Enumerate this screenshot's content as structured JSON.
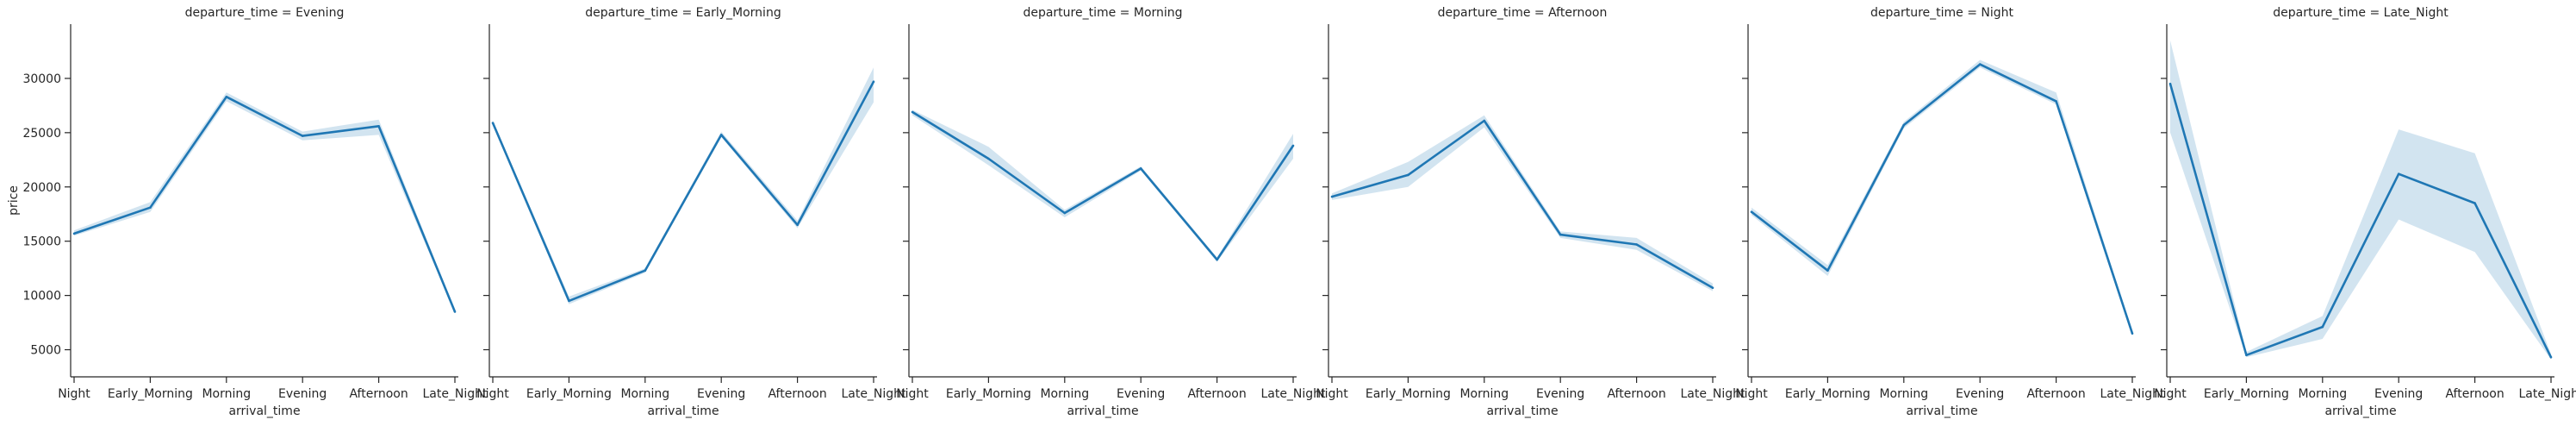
{
  "figure": {
    "ylabel": "price",
    "xlabel": "arrival_time"
  },
  "chart_data": [
    {
      "type": "line",
      "title": "departure_time = Evening",
      "xlabel": "arrival_time",
      "ylabel": "price",
      "categories": [
        "Night",
        "Early_Morning",
        "Morning",
        "Evening",
        "Afternoon",
        "Late_Night"
      ],
      "series": [
        {
          "values": [
            15700,
            18100,
            28300,
            24700,
            25600,
            8500
          ],
          "ci_low": [
            15500,
            17700,
            27900,
            24300,
            24800,
            8400
          ],
          "ci_high": [
            16000,
            18600,
            28700,
            25100,
            26200,
            8700
          ]
        }
      ],
      "ylim": [
        2500,
        35000
      ],
      "yticks": [
        5000,
        10000,
        15000,
        20000,
        25000,
        30000
      ],
      "color": "#1f77b4"
    },
    {
      "type": "line",
      "title": "departure_time = Early_Morning",
      "xlabel": "arrival_time",
      "ylabel": "price",
      "categories": [
        "Night",
        "Early_Morning",
        "Morning",
        "Evening",
        "Afternoon",
        "Late_Night"
      ],
      "series": [
        {
          "values": [
            25900,
            9500,
            12300,
            24800,
            16500,
            29700
          ],
          "ci_low": [
            25700,
            9200,
            12100,
            24600,
            16200,
            27800
          ],
          "ci_high": [
            26100,
            9900,
            12500,
            25100,
            16900,
            31000
          ]
        }
      ],
      "ylim": [
        2500,
        35000
      ],
      "yticks": [
        5000,
        10000,
        15000,
        20000,
        25000,
        30000
      ],
      "color": "#1f77b4"
    },
    {
      "type": "line",
      "title": "departure_time = Morning",
      "xlabel": "arrival_time",
      "ylabel": "price",
      "categories": [
        "Night",
        "Early_Morning",
        "Morning",
        "Evening",
        "Afternoon",
        "Late_Night"
      ],
      "series": [
        {
          "values": [
            26900,
            22600,
            17600,
            21700,
            13300,
            23800
          ],
          "ci_low": [
            26600,
            22000,
            17200,
            21500,
            13100,
            22600
          ],
          "ci_high": [
            27100,
            23700,
            17900,
            21900,
            13500,
            24900
          ]
        }
      ],
      "ylim": [
        2500,
        35000
      ],
      "yticks": [
        5000,
        10000,
        15000,
        20000,
        25000,
        30000
      ],
      "color": "#1f77b4"
    },
    {
      "type": "line",
      "title": "departure_time = Afternoon",
      "xlabel": "arrival_time",
      "ylabel": "price",
      "categories": [
        "Night",
        "Early_Morning",
        "Morning",
        "Evening",
        "Afternoon",
        "Late_Night"
      ],
      "series": [
        {
          "values": [
            19100,
            21100,
            26100,
            15600,
            14700,
            10700
          ],
          "ci_low": [
            18800,
            20000,
            25500,
            15300,
            14200,
            10400
          ],
          "ci_high": [
            19400,
            22300,
            26600,
            15900,
            15300,
            11100
          ]
        }
      ],
      "ylim": [
        2500,
        35000
      ],
      "yticks": [
        5000,
        10000,
        15000,
        20000,
        25000,
        30000
      ],
      "color": "#1f77b4"
    },
    {
      "type": "line",
      "title": "departure_time = Night",
      "xlabel": "arrival_time",
      "ylabel": "price",
      "categories": [
        "Night",
        "Early_Morning",
        "Morning",
        "Evening",
        "Afternoon",
        "Late_Night"
      ],
      "series": [
        {
          "values": [
            17700,
            12300,
            25700,
            31300,
            27900,
            6500
          ],
          "ci_low": [
            17400,
            11800,
            25400,
            31000,
            27600,
            6400
          ],
          "ci_high": [
            18100,
            12800,
            26000,
            31700,
            28700,
            6700
          ]
        }
      ],
      "ylim": [
        2500,
        35000
      ],
      "yticks": [
        5000,
        10000,
        15000,
        20000,
        25000,
        30000
      ],
      "color": "#1f77b4"
    },
    {
      "type": "line",
      "title": "departure_time = Late_Night",
      "xlabel": "arrival_time",
      "ylabel": "price",
      "categories": [
        "Night",
        "Early_Morning",
        "Morning",
        "Evening",
        "Afternoon",
        "Late_Night"
      ],
      "series": [
        {
          "values": [
            29500,
            4500,
            7100,
            21200,
            18500,
            4300
          ],
          "ci_low": [
            25000,
            4300,
            6000,
            17000,
            14000,
            4100
          ],
          "ci_high": [
            33500,
            4800,
            8100,
            25300,
            23100,
            4600
          ]
        }
      ],
      "ylim": [
        2500,
        35000
      ],
      "yticks": [
        5000,
        10000,
        15000,
        20000,
        25000,
        30000
      ],
      "color": "#1f77b4"
    }
  ]
}
